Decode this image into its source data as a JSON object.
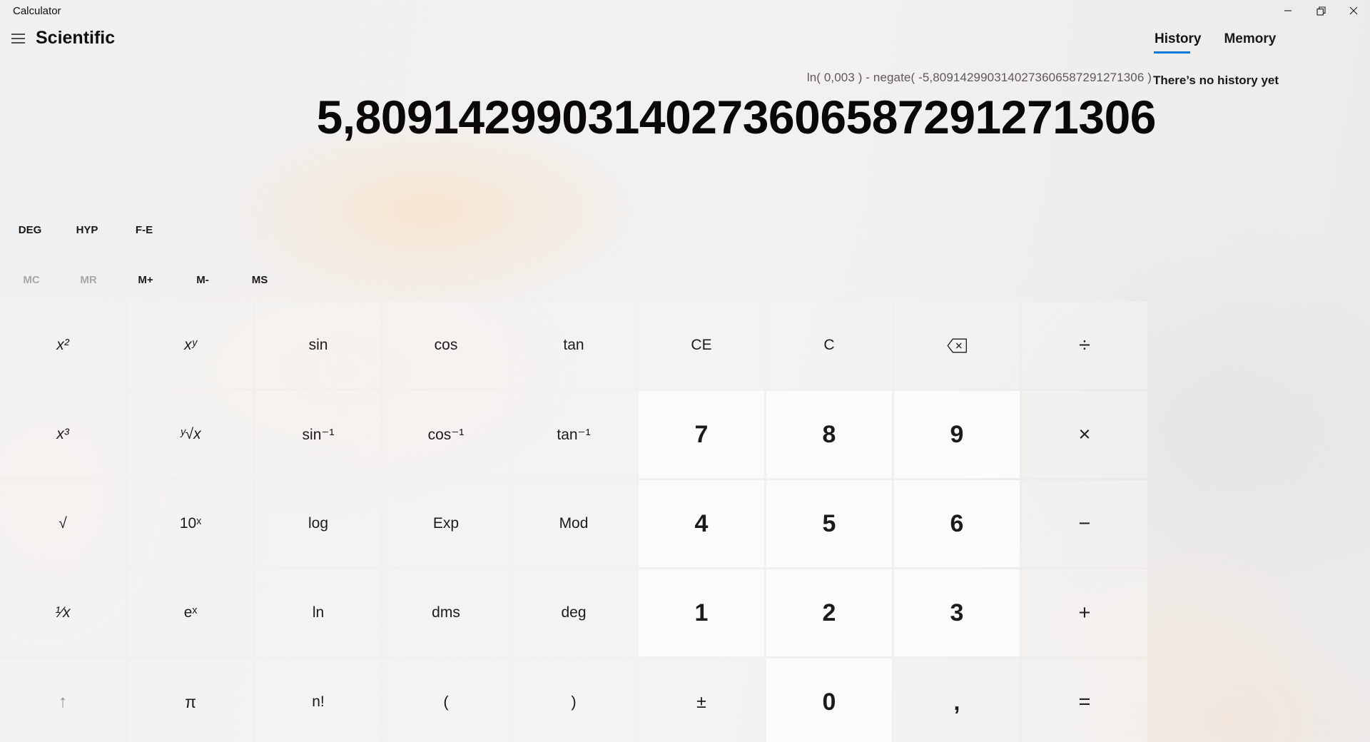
{
  "theme": {
    "accent": "#0078d4",
    "tab_underline": "#0078d4"
  },
  "window": {
    "title": "Calculator",
    "controls": [
      {
        "icon": "minimize-icon",
        "name": "minimize-button"
      },
      {
        "icon": "restore-icon",
        "name": "restore-button"
      },
      {
        "icon": "close-icon",
        "name": "close-button"
      }
    ]
  },
  "header": {
    "menu_icon": "hamburger-icon",
    "mode": "Scientific"
  },
  "panel": {
    "tabs": [
      {
        "label": "History",
        "active": true
      },
      {
        "label": "Memory",
        "active": false
      }
    ],
    "empty_message": "There’s no history yet"
  },
  "display": {
    "expression": "ln( 0,003 ) - negate( -5,8091429903140273606587291271306 )",
    "value": "5,8091429903140273606587291271306"
  },
  "toggles": [
    {
      "label": "DEG",
      "name": "deg-toggle-button"
    },
    {
      "label": "HYP",
      "name": "hyp-toggle-button"
    },
    {
      "label": "F-E",
      "name": "fe-toggle-button"
    }
  ],
  "memory": [
    {
      "label": "MC",
      "name": "memory-clear-button",
      "disabled": true
    },
    {
      "label": "MR",
      "name": "memory-recall-button",
      "disabled": true
    },
    {
      "label": "M+",
      "name": "memory-add-button",
      "disabled": false
    },
    {
      "label": "M-",
      "name": "memory-subtract-button",
      "disabled": false
    },
    {
      "label": "MS",
      "name": "memory-store-button",
      "disabled": false
    }
  ],
  "keypad": {
    "rows": [
      [
        {
          "label": "x²",
          "name": "x-squared-button",
          "kind": "fn",
          "italic": true
        },
        {
          "label": "xʸ",
          "name": "x-power-y-button",
          "kind": "fn",
          "italic": true
        },
        {
          "label": "sin",
          "name": "sine-button",
          "kind": "fn"
        },
        {
          "label": "cos",
          "name": "cosine-button",
          "kind": "fn"
        },
        {
          "label": "tan",
          "name": "tangent-button",
          "kind": "fn"
        },
        {
          "label": "CE",
          "name": "clear-entry-button",
          "kind": "fn"
        },
        {
          "label": "C",
          "name": "clear-button",
          "kind": "fn"
        },
        {
          "label": "",
          "icon": "backspace-icon",
          "name": "backspace-button",
          "kind": "fn"
        },
        {
          "label": "÷",
          "name": "divide-button",
          "kind": "op"
        }
      ],
      [
        {
          "label": "x³",
          "name": "x-cubed-button",
          "kind": "fn",
          "italic": true
        },
        {
          "label": "ʸ√x",
          "name": "y-root-x-button",
          "kind": "fn",
          "italic": true
        },
        {
          "label": "sin⁻¹",
          "name": "inverse-sine-button",
          "kind": "fn"
        },
        {
          "label": "cos⁻¹",
          "name": "inverse-cosine-button",
          "kind": "fn"
        },
        {
          "label": "tan⁻¹",
          "name": "inverse-tangent-button",
          "kind": "fn"
        },
        {
          "label": "7",
          "name": "seven-button",
          "kind": "num"
        },
        {
          "label": "8",
          "name": "eight-button",
          "kind": "num"
        },
        {
          "label": "9",
          "name": "nine-button",
          "kind": "num"
        },
        {
          "label": "×",
          "name": "multiply-button",
          "kind": "op"
        }
      ],
      [
        {
          "label": "√",
          "name": "square-root-button",
          "kind": "fn"
        },
        {
          "label": "10ˣ",
          "name": "ten-power-x-button",
          "kind": "fn"
        },
        {
          "label": "log",
          "name": "log-button",
          "kind": "fn"
        },
        {
          "label": "Exp",
          "name": "exp-button",
          "kind": "fn"
        },
        {
          "label": "Mod",
          "name": "mod-button",
          "kind": "fn"
        },
        {
          "label": "4",
          "name": "four-button",
          "kind": "num"
        },
        {
          "label": "5",
          "name": "five-button",
          "kind": "num"
        },
        {
          "label": "6",
          "name": "six-button",
          "kind": "num"
        },
        {
          "label": "−",
          "name": "subtract-button",
          "kind": "op"
        }
      ],
      [
        {
          "label": "¹⁄x",
          "name": "reciprocal-button",
          "kind": "fn",
          "italic": true
        },
        {
          "label": "eˣ",
          "name": "e-power-x-button",
          "kind": "fn"
        },
        {
          "label": "ln",
          "name": "natural-log-button",
          "kind": "fn"
        },
        {
          "label": "dms",
          "name": "dms-button",
          "kind": "fn"
        },
        {
          "label": "deg",
          "name": "degrees-button",
          "kind": "fn"
        },
        {
          "label": "1",
          "name": "one-button",
          "kind": "num"
        },
        {
          "label": "2",
          "name": "two-button",
          "kind": "num"
        },
        {
          "label": "3",
          "name": "three-button",
          "kind": "num"
        },
        {
          "label": "+",
          "name": "add-button",
          "kind": "op"
        }
      ],
      [
        {
          "label": "↑",
          "name": "shift-button",
          "kind": "fn",
          "disabled": true
        },
        {
          "label": "π",
          "name": "pi-button",
          "kind": "fn"
        },
        {
          "label": "n!",
          "name": "factorial-button",
          "kind": "fn"
        },
        {
          "label": "(",
          "name": "open-paren-button",
          "kind": "fn"
        },
        {
          "label": ")",
          "name": "close-paren-button",
          "kind": "fn"
        },
        {
          "label": "±",
          "name": "plus-minus-button",
          "kind": "fn"
        },
        {
          "label": "0",
          "name": "zero-button",
          "kind": "num"
        },
        {
          "label": ",",
          "name": "decimal-separator-button",
          "kind": "fn"
        },
        {
          "label": "=",
          "name": "equals-button",
          "kind": "op"
        }
      ]
    ]
  }
}
